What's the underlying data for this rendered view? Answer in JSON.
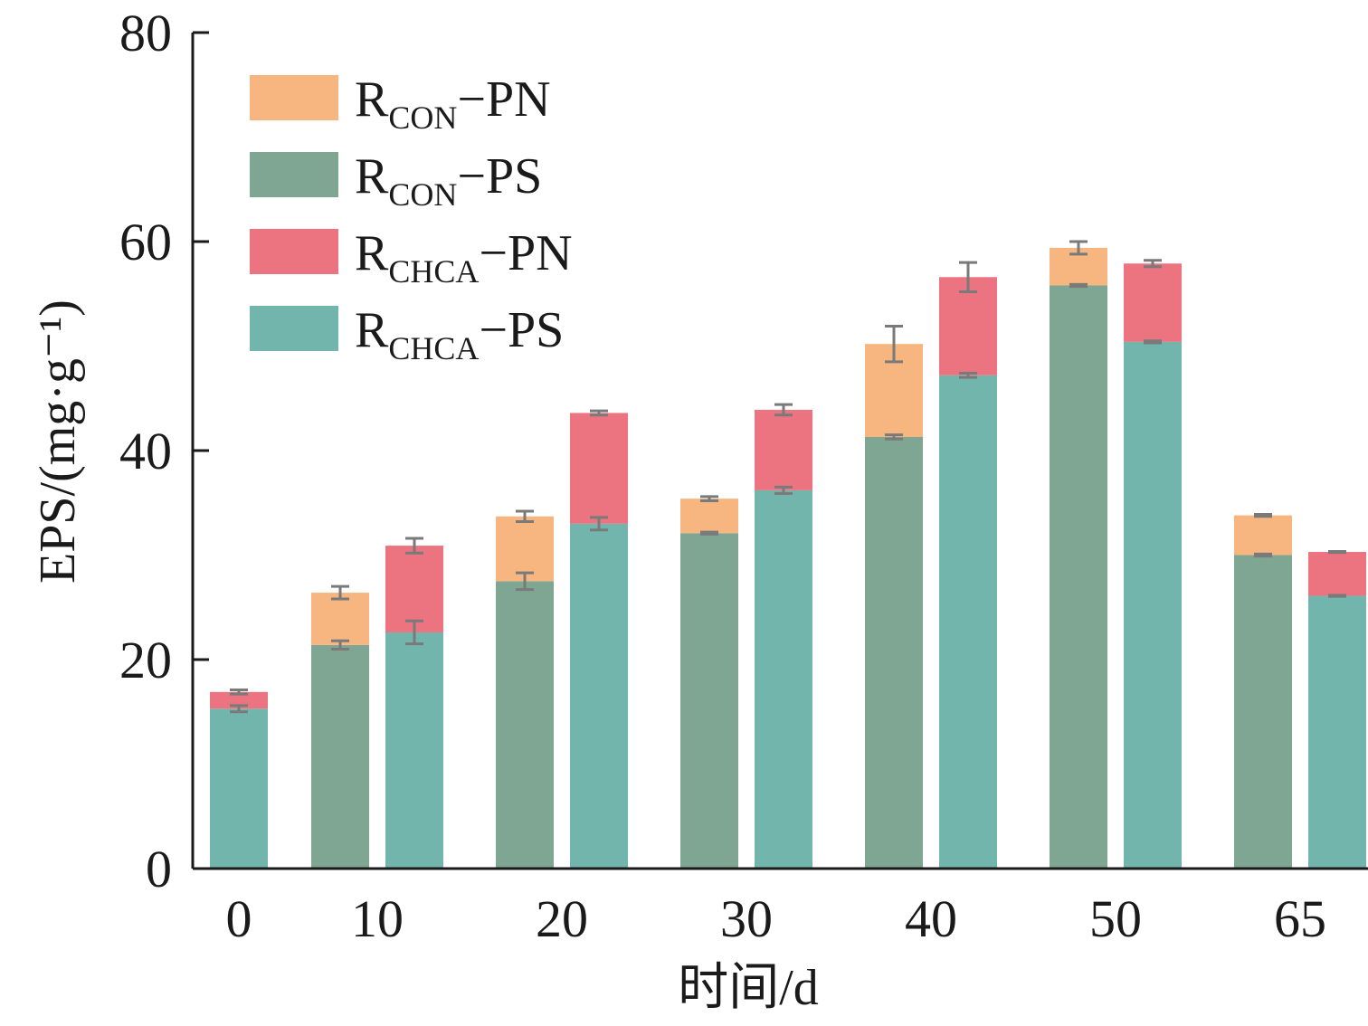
{
  "chart_data": {
    "type": "bar",
    "stacked": true,
    "xlabel": "时间/d",
    "ylabel": "EPS/(mg·g⁻¹)",
    "ylim": [
      0,
      80
    ],
    "yticks": [
      0,
      20,
      40,
      60,
      80
    ],
    "categories": [
      "0",
      "10",
      "20",
      "30",
      "40",
      "50",
      "65"
    ],
    "legend_position": "top-left",
    "colors": {
      "RCON-PN": "#f7b57f",
      "RCON-PS": "#7fa692",
      "RCHCA-PN": "#ec7380",
      "RCHCA-PS": "#72b5ad",
      "errorbar": "#7a7a7a",
      "axis": "#1a1a1a"
    },
    "legend": [
      {
        "key": "RCON-PN",
        "main": "R",
        "sub": "CON",
        "suffix": "−PN"
      },
      {
        "key": "RCON-PS",
        "main": "R",
        "sub": "CON",
        "suffix": "−PS"
      },
      {
        "key": "RCHCA-PN",
        "main": "R",
        "sub": "CHCA",
        "suffix": "−PN"
      },
      {
        "key": "RCHCA-PS",
        "main": "R",
        "sub": "CHCA",
        "suffix": "−PS"
      }
    ],
    "groups": [
      {
        "category": "0",
        "bars": [
          {
            "reactor": "RCHCA",
            "ps": 15.3,
            "ps_err": 0.3,
            "pn": 1.6,
            "total_err": 0.2
          }
        ]
      },
      {
        "category": "10",
        "bars": [
          {
            "reactor": "RCON",
            "ps": 21.4,
            "ps_err": 0.4,
            "pn": 5.0,
            "total_err": 0.6
          },
          {
            "reactor": "RCHCA",
            "ps": 22.6,
            "ps_err": 1.1,
            "pn": 8.3,
            "total_err": 0.7
          }
        ]
      },
      {
        "category": "20",
        "bars": [
          {
            "reactor": "RCON",
            "ps": 27.5,
            "ps_err": 0.8,
            "pn": 6.2,
            "total_err": 0.5
          },
          {
            "reactor": "RCHCA",
            "ps": 33.0,
            "ps_err": 0.6,
            "pn": 10.6,
            "total_err": 0.2
          }
        ]
      },
      {
        "category": "30",
        "bars": [
          {
            "reactor": "RCON",
            "ps": 32.1,
            "ps_err": 0.1,
            "pn": 3.3,
            "total_err": 0.2
          },
          {
            "reactor": "RCHCA",
            "ps": 36.2,
            "ps_err": 0.3,
            "pn": 7.7,
            "total_err": 0.5
          }
        ]
      },
      {
        "category": "40",
        "bars": [
          {
            "reactor": "RCON",
            "ps": 41.3,
            "ps_err": 0.2,
            "pn": 8.9,
            "total_err": 1.7
          },
          {
            "reactor": "RCHCA",
            "ps": 47.2,
            "ps_err": 0.2,
            "pn": 9.4,
            "total_err": 1.4
          }
        ]
      },
      {
        "category": "50",
        "bars": [
          {
            "reactor": "RCON",
            "ps": 55.8,
            "ps_err": 0.1,
            "pn": 3.6,
            "total_err": 0.6
          },
          {
            "reactor": "RCHCA",
            "ps": 50.4,
            "ps_err": 0.1,
            "pn": 7.5,
            "total_err": 0.3
          }
        ]
      },
      {
        "category": "65",
        "bars": [
          {
            "reactor": "RCON",
            "ps": 30.0,
            "ps_err": 0.1,
            "pn": 3.8,
            "total_err": 0.1
          },
          {
            "reactor": "RCHCA",
            "ps": 26.1,
            "ps_err": 0.05,
            "pn": 4.2,
            "total_err": 0.05
          }
        ]
      }
    ]
  }
}
